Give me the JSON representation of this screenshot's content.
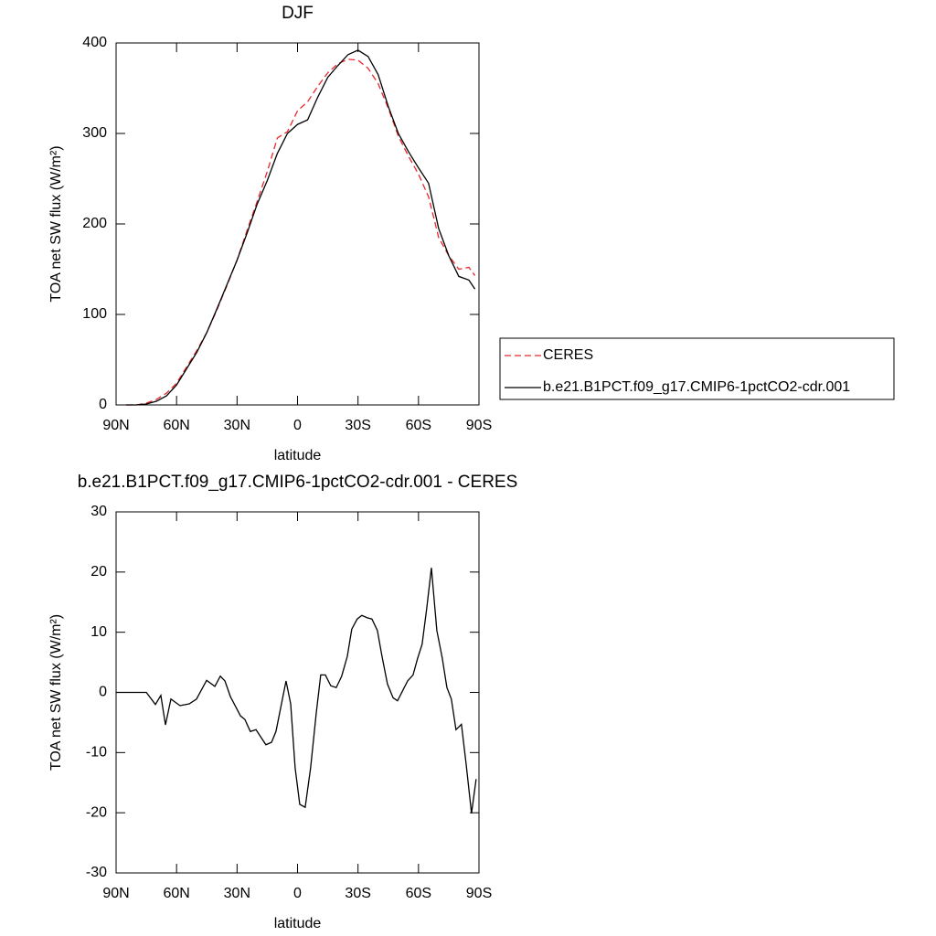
{
  "chart_data": [
    {
      "type": "line",
      "title": "DJF",
      "x_label": "latitude",
      "y_label": "TOA net SW flux (W/m²)",
      "x": [
        85,
        80,
        75,
        70,
        65,
        60,
        55,
        50,
        45,
        40,
        35,
        30,
        25,
        20,
        15,
        10,
        5,
        0,
        -5,
        -10,
        -15,
        -20,
        -25,
        -30,
        -35,
        -40,
        -45,
        -50,
        -55,
        -60,
        -65,
        -70,
        -75,
        -80,
        -85,
        -88
      ],
      "series": [
        {
          "name": "CERES",
          "color": "#e8262b",
          "line_style": "dashed",
          "values": [
            0,
            0,
            2,
            6,
            13,
            24,
            42,
            60,
            80,
            105,
            132,
            160,
            193,
            225,
            258,
            295,
            302,
            325,
            335,
            352,
            367,
            377,
            382,
            381,
            372,
            355,
            328,
            297,
            275,
            255,
            230,
            185,
            165,
            150,
            152,
            143
          ]
        },
        {
          "name": "b.e21.B1PCT.f09_g17.CMIP6-1pctCO2-cdr.001",
          "color": "#000000",
          "line_style": "solid",
          "values": [
            0,
            0,
            1,
            4,
            10,
            22,
            40,
            58,
            80,
            106,
            133,
            160,
            190,
            222,
            248,
            278,
            300,
            310,
            315,
            340,
            362,
            375,
            387,
            392,
            385,
            365,
            330,
            300,
            280,
            262,
            245,
            195,
            165,
            142,
            138,
            128
          ]
        }
      ],
      "xlim": [
        90,
        -90
      ],
      "xticks": [
        {
          "value": 90,
          "label": "90N"
        },
        {
          "value": 60,
          "label": "60N"
        },
        {
          "value": 30,
          "label": "30N"
        },
        0,
        {
          "value": -30,
          "label": "30S"
        },
        {
          "value": -60,
          "label": "60S"
        },
        {
          "value": -90,
          "label": "90S"
        }
      ],
      "ylim": [
        0,
        400
      ],
      "yticks": [
        0,
        100,
        200,
        300,
        400
      ],
      "legend": "right"
    },
    {
      "type": "line",
      "title": "b.e21.B1PCT.f09_g17.CMIP6-1pctCO2-cdr.001 - CERES",
      "x_label": "latitude",
      "y_label": "TOA net SW flux (W/m²)",
      "x": [
        90,
        75,
        70.5,
        67.8,
        65.5,
        62.8,
        58.3,
        53.7,
        50.1,
        45.1,
        41,
        38.3,
        36,
        33.3,
        28.3,
        26.1,
        23.4,
        20.6,
        15.7,
        12.9,
        10.7,
        5.7,
        3.4,
        1.2,
        -1.1,
        -3.8,
        -6.5,
        -9.3,
        -11.5,
        -13.8,
        -16.5,
        -19.2,
        -21.9,
        -24.7,
        -26.9,
        -29.6,
        -31.9,
        -34.6,
        -36.9,
        -39.6,
        -41.9,
        -44.6,
        -47.4,
        -49.6,
        -54.6,
        -57.3,
        -59.6,
        -61.8,
        -64.1,
        -66.4,
        -69.1,
        -71.8,
        -74.1,
        -76.3,
        -78.6,
        -81.3,
        -83.6,
        -86.3,
        -88.6
      ],
      "series": [
        {
          "color": "#000000",
          "line_style": "solid",
          "values": [
            0,
            0,
            -2,
            -0.5,
            -5.4,
            -1.1,
            -2.2,
            -1.9,
            -1.1,
            2,
            1,
            2.7,
            1.9,
            -0.7,
            -3.9,
            -4.5,
            -6.5,
            -6.2,
            -8.7,
            -8.3,
            -6.5,
            1.9,
            -1.9,
            -12.5,
            -18.6,
            -19.1,
            -12.5,
            -3.4,
            2.9,
            2.9,
            1.1,
            0.8,
            2.7,
            6,
            10.5,
            12.2,
            12.8,
            12.4,
            12.2,
            10.3,
            6,
            1.4,
            -0.9,
            -1.4,
            1.9,
            2.9,
            5.7,
            8,
            14,
            20.7,
            10.3,
            5.7,
            0.8,
            -1.1,
            -6.2,
            -5.3,
            -11.8,
            -20.1,
            -14.4
          ]
        }
      ],
      "xlim": [
        90,
        -90
      ],
      "xticks": [
        {
          "value": 90,
          "label": "90N"
        },
        {
          "value": 60,
          "label": "60N"
        },
        {
          "value": 30,
          "label": "30N"
        },
        0,
        {
          "value": -30,
          "label": "30S"
        },
        {
          "value": -60,
          "label": "60S"
        },
        {
          "value": -90,
          "label": "90S"
        }
      ],
      "ylim": [
        -30,
        30
      ],
      "yticks": [
        -30,
        -20,
        -10,
        0,
        10,
        20,
        30
      ]
    }
  ]
}
